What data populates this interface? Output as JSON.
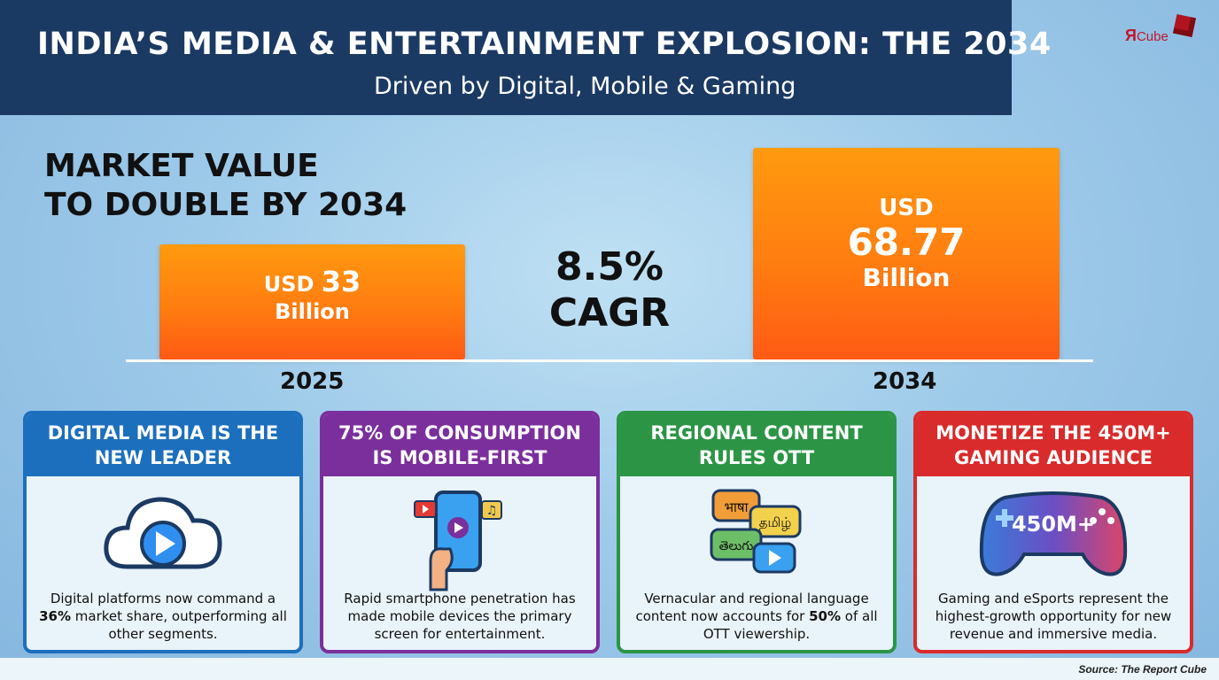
{
  "header": {
    "title": "INDIA’S MEDIA & ENTERTAINMENT EXPLOSION: THE 2034",
    "subtitle": "Driven by Digital, Mobile & Gaming"
  },
  "logo": {
    "mark": "Я",
    "word": "Cube"
  },
  "headline": {
    "line1": "MARKET VALUE",
    "line2": "TO DOUBLE BY 2034"
  },
  "cagr": {
    "value": "8.5%",
    "label": "CAGR"
  },
  "chart_data": {
    "type": "bar",
    "categories": [
      "2025",
      "2034"
    ],
    "values": [
      33,
      68.77
    ],
    "title": "MARKET VALUE TO DOUBLE BY 2034",
    "units": "USD Billion",
    "ylim": [
      0,
      75
    ],
    "data_labels": [
      {
        "prefix": "USD",
        "number": "33",
        "suffix": "Billion"
      },
      {
        "prefix": "USD",
        "number": "68.77",
        "suffix": "Billion"
      }
    ],
    "bar_color": "#ff7d10"
  },
  "cards": [
    {
      "title": "DIGITAL MEDIA IS THE NEW LEADER",
      "color": "#1c6fbd",
      "icon": "cloud-play-icon",
      "text_pre": "Digital platforms now command a ",
      "text_bold": "36%",
      "text_post": " market share, outperforming all other segments."
    },
    {
      "title": "75% OF CONSUMPTION IS MOBILE-FIRST",
      "color": "#7b2f9c",
      "icon": "smartphone-icon",
      "text_pre": "Rapid smartphone penetration has made mobile devices the primary screen for entertainment.",
      "text_bold": "",
      "text_post": ""
    },
    {
      "title": "REGIONAL CONTENT RULES OTT",
      "color": "#2b9545",
      "icon": "language-bubbles-icon",
      "text_pre": "Vernacular and regional language content now accounts for ",
      "text_bold": "50%",
      "text_post": " of all OTT viewership.",
      "bubbles": [
        "भाषा",
        "தமிழ்",
        "తెలుగు"
      ]
    },
    {
      "title": "MONETIZE THE 450M+ GAMING AUDIENCE",
      "color": "#d92b2b",
      "icon": "gamepad-icon",
      "icon_text": "450M+",
      "text_pre": "Gaming and eSports represent the highest-growth opportunity for new revenue and immersive media.",
      "text_bold": "",
      "text_post": ""
    }
  ],
  "source": "Source: The Report Cube"
}
